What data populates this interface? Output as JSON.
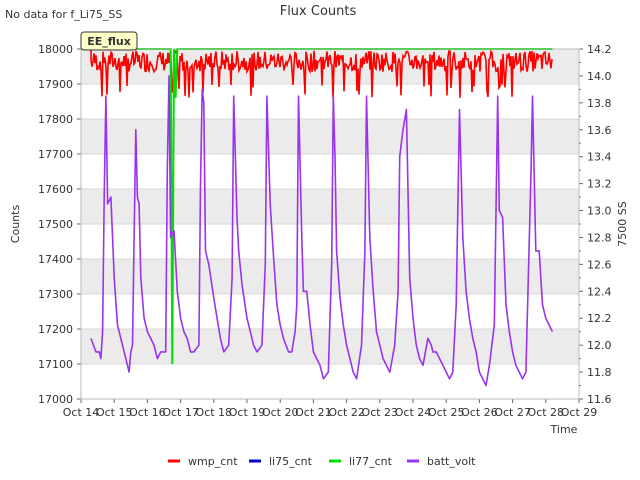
{
  "header": {
    "no_data_note": "No data for f_Li75_SS",
    "site_tag": "EE_flux"
  },
  "colors": {
    "wmp_cnt": "#ff0000",
    "li75_cnt": "#0000cc",
    "li77_cnt": "#00dd00",
    "batt_volt": "#9933ee",
    "band": "#ebebeb"
  },
  "chart_data": {
    "type": "line",
    "title": "Flux Counts",
    "xlabel": "Time",
    "ylabel": "Counts",
    "y2label": "7500 SS",
    "xlim": [
      "Oct 14",
      "Oct 29"
    ],
    "ylim": [
      17000,
      18000
    ],
    "y2lim": [
      11.6,
      14.2
    ],
    "x_ticks": [
      "Oct 14",
      "Oct 15",
      "Oct 16",
      "Oct 17",
      "Oct 18",
      "Oct 19",
      "Oct 20",
      "Oct 21",
      "Oct 22",
      "Oct 23",
      "Oct 24",
      "Oct 25",
      "Oct 26",
      "Oct 27",
      "Oct 28",
      "Oct 29"
    ],
    "y_ticks": [
      "17000",
      "17100",
      "17200",
      "17300",
      "17400",
      "17500",
      "17600",
      "17700",
      "17800",
      "17900",
      "18000"
    ],
    "y2_ticks": [
      "11.6",
      "11.8",
      "12.0",
      "12.2",
      "12.4",
      "12.6",
      "12.8",
      "13.0",
      "13.2",
      "13.4",
      "13.6",
      "13.8",
      "14.0",
      "14.2"
    ],
    "grid": true,
    "legend_position": "bottom",
    "series": [
      {
        "name": "wmp_cnt",
        "axis": "left",
        "summary": "dense spikes between 17860 and 18000, Oct 14.3 to Oct 28.2",
        "x": [
          14.3,
          28.2
        ],
        "range": [
          17860,
          18000
        ]
      },
      {
        "name": "li75_cnt",
        "axis": "left",
        "x": [],
        "y": []
      },
      {
        "name": "li77_cnt",
        "axis": "left",
        "x": [
          14.3,
          16.7,
          16.75,
          16.8,
          16.85,
          16.9,
          16.95,
          28.2
        ],
        "y": [
          18000,
          18000,
          17100,
          18000,
          17860,
          18000,
          18000,
          18000
        ]
      },
      {
        "name": "batt_volt",
        "axis": "right",
        "x": [
          14.3,
          14.45,
          14.55,
          14.6,
          14.65,
          14.7,
          14.75,
          14.8,
          14.9,
          15.0,
          15.1,
          15.2,
          15.25,
          15.35,
          15.45,
          15.5,
          15.55,
          15.6,
          15.65,
          15.7,
          15.75,
          15.8,
          15.9,
          16.0,
          16.1,
          16.2,
          16.3,
          16.4,
          16.45,
          16.5,
          16.55,
          16.6,
          16.65,
          16.7,
          16.8,
          16.9,
          17.0,
          17.1,
          17.2,
          17.3,
          17.4,
          17.55,
          17.6,
          17.65,
          17.7,
          17.75,
          17.85,
          18.0,
          18.1,
          18.2,
          18.3,
          18.45,
          18.55,
          18.6,
          18.7,
          18.75,
          18.85,
          19.0,
          19.1,
          19.2,
          19.3,
          19.45,
          19.55,
          19.6,
          19.7,
          19.8,
          19.9,
          20.0,
          20.1,
          20.25,
          20.35,
          20.45,
          20.5,
          20.55,
          20.65,
          20.7,
          20.8,
          20.9,
          21.0,
          21.1,
          21.2,
          21.3,
          21.45,
          21.55,
          21.6,
          21.65,
          21.7,
          21.8,
          21.9,
          22.0,
          22.1,
          22.2,
          22.3,
          22.45,
          22.55,
          22.6,
          22.7,
          22.8,
          22.9,
          23.0,
          23.1,
          23.2,
          23.3,
          23.45,
          23.55,
          23.6,
          23.7,
          23.8,
          23.9,
          24.0,
          24.1,
          24.2,
          24.3,
          24.45,
          24.55,
          24.6,
          24.7,
          24.8,
          24.9,
          25.0,
          25.1,
          25.2,
          25.3,
          25.4,
          25.5,
          25.6,
          25.7,
          25.8,
          25.9,
          26.0,
          26.1,
          26.2,
          26.3,
          26.45,
          26.55,
          26.6,
          26.7,
          26.8,
          26.9,
          27.0,
          27.1,
          27.2,
          27.3,
          27.4,
          27.55,
          27.6,
          27.7,
          27.8,
          27.9,
          28.0,
          28.1,
          28.2
        ],
        "y": [
          12.05,
          11.95,
          11.95,
          11.9,
          12.1,
          13.1,
          13.85,
          13.05,
          13.1,
          12.5,
          12.15,
          12.05,
          12.0,
          11.9,
          11.8,
          11.95,
          12.0,
          12.8,
          13.6,
          13.1,
          13.05,
          12.5,
          12.2,
          12.1,
          12.05,
          12.0,
          11.9,
          11.95,
          11.95,
          11.95,
          11.95,
          13.3,
          14.0,
          12.8,
          12.85,
          12.4,
          12.2,
          12.1,
          12.05,
          11.95,
          11.95,
          12.0,
          13.2,
          13.9,
          13.8,
          12.7,
          12.6,
          12.35,
          12.2,
          12.05,
          11.95,
          12.0,
          12.5,
          13.85,
          12.95,
          12.7,
          12.45,
          12.2,
          12.1,
          12.0,
          11.95,
          12.0,
          12.6,
          13.85,
          13.05,
          12.65,
          12.3,
          12.15,
          12.05,
          11.95,
          11.95,
          12.1,
          12.3,
          13.85,
          12.8,
          12.4,
          12.4,
          12.15,
          11.95,
          11.9,
          11.85,
          11.75,
          11.8,
          12.6,
          13.85,
          13.4,
          12.7,
          12.35,
          12.15,
          12.0,
          11.9,
          11.8,
          11.75,
          12.0,
          12.7,
          13.85,
          12.8,
          12.4,
          12.1,
          12.0,
          11.9,
          11.85,
          11.8,
          12.0,
          12.4,
          13.4,
          13.6,
          13.75,
          12.5,
          12.2,
          12.0,
          11.9,
          11.85,
          12.05,
          12.0,
          11.95,
          11.95,
          11.9,
          11.85,
          11.8,
          11.75,
          11.8,
          12.3,
          13.75,
          12.8,
          12.4,
          12.2,
          12.05,
          11.95,
          11.8,
          11.75,
          11.7,
          11.85,
          12.15,
          13.85,
          13.0,
          12.95,
          12.3,
          12.1,
          11.95,
          11.85,
          11.8,
          11.75,
          11.8,
          13.25,
          13.85,
          12.7,
          12.7,
          12.3,
          12.2,
          12.15,
          12.1
        ]
      }
    ]
  }
}
